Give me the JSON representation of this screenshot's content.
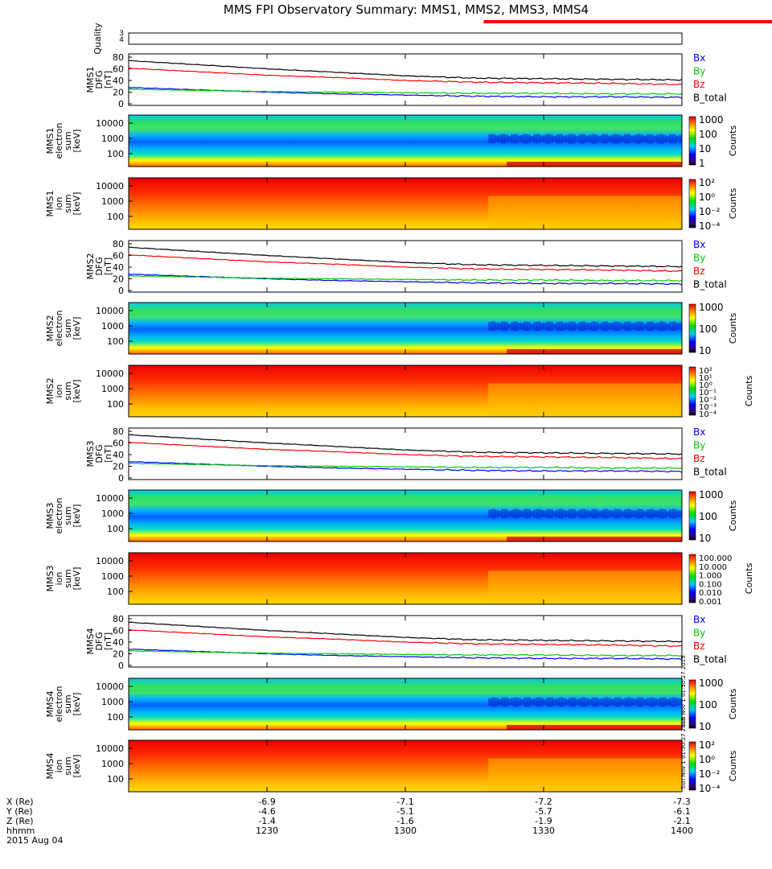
{
  "title": "MMS FPI Observatory Summary: MMS1, MMS2, MMS3, MMS4",
  "colors": {
    "bx": "#0000ff",
    "by": "#00cc00",
    "bz": "#ff0000",
    "btotal": "#000000",
    "quality_bar": "#ff0000"
  },
  "quality_panel": {
    "ylabel": "Quality",
    "ticks": [
      "3",
      "4"
    ],
    "bars": [
      [
        1317,
        1399
      ],
      [
        1400,
        1402
      ]
    ]
  },
  "field_legend": [
    "Bx",
    "By",
    "Bz",
    "B_total"
  ],
  "panels": [
    {
      "kind": "field",
      "ylabel": [
        "MMS1",
        "DFG",
        "[nT]"
      ],
      "yticks": [
        "80",
        "60",
        "40",
        "20",
        "0"
      ],
      "ylim": [
        0,
        80
      ]
    },
    {
      "kind": "spec",
      "ylabel": [
        "MMS1",
        "electron",
        "sum",
        "[keV]"
      ],
      "yticks": [
        "10000",
        "1000",
        "100"
      ],
      "cbar_label": "Counts",
      "cbar_ticks": [
        "1000",
        "100",
        "10",
        "1"
      ],
      "scheme": "electron"
    },
    {
      "kind": "spec",
      "ylabel": [
        "MMS1",
        "ion",
        "sum",
        "[keV]"
      ],
      "yticks": [
        "10000",
        "1000",
        "100"
      ],
      "cbar_label": "Counts",
      "cbar_ticks": [
        "10²",
        "10⁰",
        "10⁻²",
        "10⁻⁴"
      ],
      "scheme": "ion"
    },
    {
      "kind": "field",
      "ylabel": [
        "MMS2",
        "DFG",
        "[nT]"
      ],
      "yticks": [
        "80",
        "60",
        "40",
        "20",
        "0"
      ],
      "ylim": [
        0,
        80
      ]
    },
    {
      "kind": "spec",
      "ylabel": [
        "MMS2",
        "electron",
        "sum",
        "[keV]"
      ],
      "yticks": [
        "10000",
        "1000",
        "100"
      ],
      "cbar_label": "Counts",
      "cbar_ticks": [
        "1000",
        "100",
        "10"
      ],
      "scheme": "electron"
    },
    {
      "kind": "spec",
      "ylabel": [
        "MMS2",
        "ion",
        "sum",
        "[keV]"
      ],
      "yticks": [
        "10000",
        "1000",
        "100"
      ],
      "cbar_label": "Counts",
      "cbar_ticks": [
        "10²",
        "10¹",
        "10⁰",
        "10⁻¹",
        "10⁻²",
        "10⁻³",
        "10⁻⁴"
      ],
      "scheme": "ion"
    },
    {
      "kind": "field",
      "ylabel": [
        "MMS3",
        "DFG",
        "[nT]"
      ],
      "yticks": [
        "80",
        "60",
        "40",
        "20",
        "0"
      ],
      "ylim": [
        0,
        80
      ]
    },
    {
      "kind": "spec",
      "ylabel": [
        "MMS3",
        "electron",
        "sum",
        "[keV]"
      ],
      "yticks": [
        "10000",
        "1000",
        "100"
      ],
      "cbar_label": "Counts",
      "cbar_ticks": [
        "1000",
        "100",
        "10"
      ],
      "scheme": "electron"
    },
    {
      "kind": "spec",
      "ylabel": [
        "MMS3",
        "ion",
        "sum",
        "[keV]"
      ],
      "yticks": [
        "10000",
        "1000",
        "100"
      ],
      "cbar_label": "Counts",
      "cbar_ticks": [
        "100.000",
        "10.000",
        "1.000",
        "0.100",
        "0.010",
        "0.001"
      ],
      "scheme": "ion"
    },
    {
      "kind": "field",
      "ylabel": [
        "MMS4",
        "DFG",
        "[nT]"
      ],
      "yticks": [
        "80",
        "60",
        "40",
        "20",
        "0"
      ],
      "ylim": [
        0,
        80
      ]
    },
    {
      "kind": "spec",
      "ylabel": [
        "MMS4",
        "electron",
        "sum",
        "[keV]"
      ],
      "yticks": [
        "10000",
        "1000",
        "100"
      ],
      "cbar_label": "Counts",
      "cbar_ticks": [
        "1000",
        "100",
        "10"
      ],
      "scheme": "electron"
    },
    {
      "kind": "spec",
      "ylabel": [
        "MMS4",
        "ion",
        "sum",
        "[keV]"
      ],
      "yticks": [
        "10000",
        "1000",
        "100"
      ],
      "cbar_label": "Counts",
      "cbar_ticks": [
        "10²",
        "10⁰",
        "10⁻²",
        "10⁻⁴"
      ],
      "scheme": "ion"
    }
  ],
  "side_stamps": [
    "Sun Nov 1 01:50:27 2015",
    "Sun Nov 1 01:50:27 2015"
  ],
  "x_axis": {
    "row_labels": [
      "X (Re)",
      "Y (Re)",
      "Z (Re)",
      "hhmm"
    ],
    "date": "2015 Aug 04",
    "ticks": [
      {
        "t": 1230,
        "x": "-6.9",
        "y": "-4.6",
        "z": "-1.4",
        "hhmm": "1230"
      },
      {
        "t": 1300,
        "x": "-7.1",
        "y": "-5.1",
        "z": "-1.6",
        "hhmm": "1300"
      },
      {
        "t": 1330,
        "x": "-7.2",
        "y": "-5.7",
        "z": "-1.9",
        "hhmm": "1330"
      },
      {
        "t": 1400,
        "x": "-7.3",
        "y": "-6.1",
        "z": "-2.1",
        "hhmm": "1400"
      }
    ]
  },
  "chart_data": {
    "type": "line",
    "title": "MMS FPI Observatory Summary: MMS1, MMS2, MMS3, MMS4",
    "xlabel": "hhmm",
    "x": [
      1200,
      1215,
      1230,
      1245,
      1300,
      1315,
      1330,
      1345,
      1400
    ],
    "ylabel": "[nT]",
    "ylim": [
      0,
      80
    ],
    "series": [
      {
        "name": "B_total",
        "values": [
          74,
          67,
          60,
          54,
          48,
          44,
          43,
          42,
          41
        ]
      },
      {
        "name": "Bz",
        "values": [
          61,
          55,
          49,
          45,
          40,
          37,
          36,
          35,
          33
        ]
      },
      {
        "name": "Bx",
        "values": [
          28,
          24,
          20,
          17,
          15,
          13,
          12,
          12,
          11
        ]
      },
      {
        "name": "By",
        "values": [
          25,
          23,
          21,
          20,
          19,
          18,
          18,
          17,
          17
        ]
      }
    ]
  }
}
